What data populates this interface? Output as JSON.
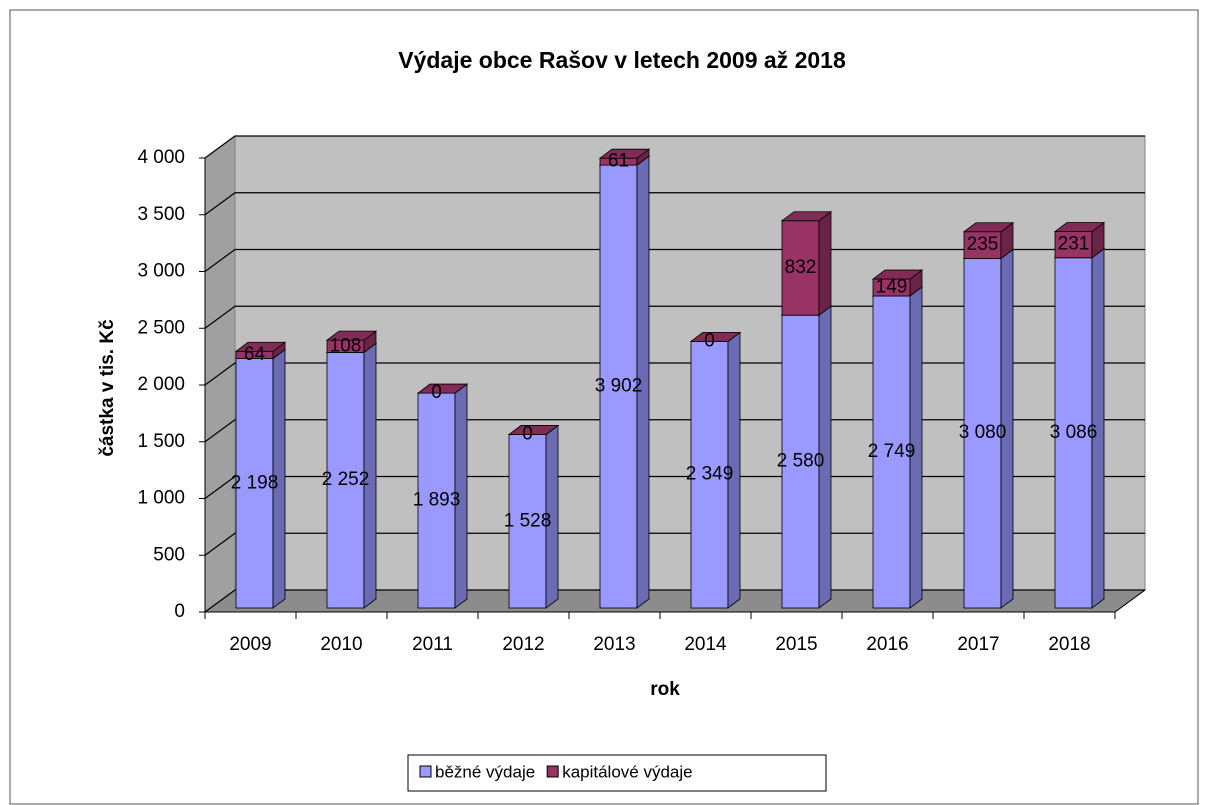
{
  "chart_data": {
    "type": "bar3d_stacked",
    "title": "Výdaje obce Rašov v letech 2009 až 2018",
    "x_label": "rok",
    "y_label": "částka v tis. Kč",
    "categories": [
      "2009",
      "2010",
      "2011",
      "2012",
      "2013",
      "2014",
      "2015",
      "2016",
      "2017",
      "2018"
    ],
    "series": [
      {
        "name": "běžné výdaje",
        "color": "#9999ff",
        "values": [
          2198,
          2252,
          1893,
          1528,
          3902,
          2349,
          2580,
          2749,
          3080,
          3086
        ],
        "value_labels": [
          "2 198",
          "2 252",
          "1 893",
          "1 528",
          "3 902",
          "2 349",
          "2 580",
          "2 749",
          "3 080",
          "3 086"
        ]
      },
      {
        "name": "kapitálové výdaje",
        "color": "#993366",
        "values": [
          64,
          108,
          0,
          0,
          61,
          0,
          832,
          149,
          235,
          231
        ]
      }
    ],
    "ylim": [
      0,
      4000
    ],
    "yticks": [
      0,
      500,
      {
        "value": 1000,
        "label": "1 000"
      },
      {
        "value": 1500,
        "label": "1 500"
      },
      {
        "value": 2000,
        "label": "2 000"
      },
      {
        "value": 2500,
        "label": "2 500"
      },
      {
        "value": 3000,
        "label": "3 000"
      },
      {
        "value": 3500,
        "label": "3 500"
      },
      {
        "value": 4000,
        "label": "4 000"
      }
    ],
    "grid": true,
    "legend": "bottom"
  }
}
